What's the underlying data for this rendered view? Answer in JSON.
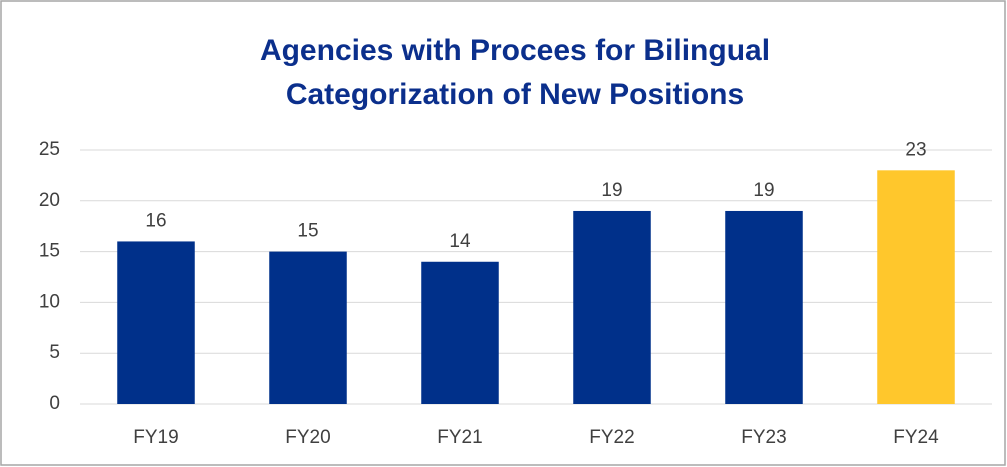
{
  "chart_data": {
    "type": "bar",
    "title": [
      "Agencies with Procees for Bilingual",
      "Categorization of New Positions"
    ],
    "categories": [
      "FY19",
      "FY20",
      "FY21",
      "FY22",
      "FY23",
      "FY24"
    ],
    "values": [
      16,
      15,
      14,
      19,
      19,
      23
    ],
    "colors": [
      "#00308a",
      "#00308a",
      "#00308a",
      "#00308a",
      "#00308a",
      "#ffc72c"
    ],
    "ylim": [
      0,
      25
    ],
    "yticks": [
      0,
      5,
      10,
      15,
      20,
      25
    ],
    "grid": true
  }
}
